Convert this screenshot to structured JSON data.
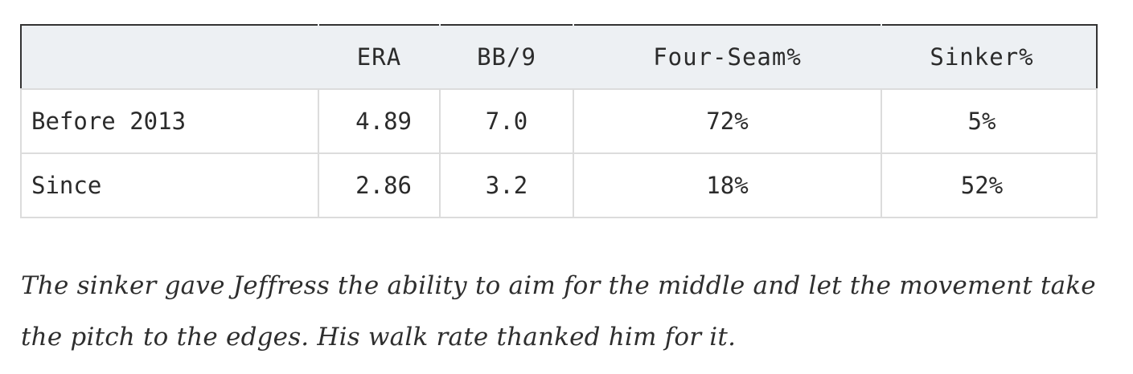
{
  "table": {
    "headers": [
      "",
      "ERA",
      "BB/9",
      "Four-Seam%",
      "Sinker%"
    ],
    "rows": [
      {
        "label": "Before 2013",
        "era": "4.89",
        "bb9": "7.0",
        "four_seam": "72%",
        "sinker": "5%"
      },
      {
        "label": "Since",
        "era": "2.86",
        "bb9": "3.2",
        "four_seam": "18%",
        "sinker": "52%"
      }
    ]
  },
  "caption": {
    "line1": "The sinker gave Jeffress the ability to aim for the middle and let the movement take",
    "line2": "the pitch to the edges. His walk rate thanked him for it."
  },
  "colors": {
    "header_bg": "#edf0f3",
    "border": "#dcdcdc",
    "header_outline": "#333333",
    "text": "#2b2b2b"
  }
}
